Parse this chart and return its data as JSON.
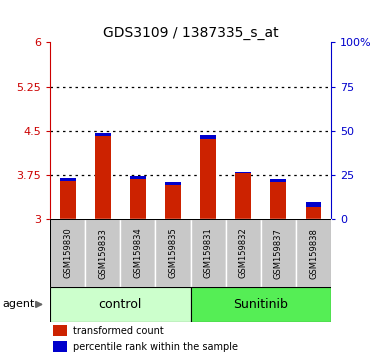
{
  "title": "GDS3109 / 1387335_s_at",
  "samples": [
    "GSM159830",
    "GSM159833",
    "GSM159834",
    "GSM159835",
    "GSM159831",
    "GSM159832",
    "GSM159837",
    "GSM159838"
  ],
  "red_values": [
    3.65,
    4.42,
    3.68,
    3.58,
    4.37,
    3.79,
    3.63,
    3.22
  ],
  "blue_tops": [
    3.7,
    4.47,
    3.73,
    3.64,
    4.43,
    3.81,
    3.69,
    3.29
  ],
  "y_min": 3.0,
  "y_max": 6.0,
  "y_ticks": [
    3.0,
    3.75,
    4.5,
    5.25,
    6.0
  ],
  "y_tick_labels": [
    "3",
    "3.75",
    "4.5",
    "5.25",
    "6"
  ],
  "right_y_ticks": [
    0,
    25,
    50,
    75,
    100
  ],
  "right_y_tick_labels": [
    "0",
    "25",
    "50",
    "75",
    "100%"
  ],
  "bar_red_color": "#cc2200",
  "bar_blue_color": "#0000cc",
  "control_label": "control",
  "sunitinib_label": "Sunitinib",
  "agent_label": "agent",
  "legend_red": "transformed count",
  "legend_blue": "percentile rank within the sample",
  "bar_width": 0.45,
  "tick_color_left": "#cc0000",
  "tick_color_right": "#0000cc",
  "control_bg": "#ccffcc",
  "sunitinib_bg": "#55ee55",
  "sample_bg": "#c8c8c8",
  "plot_bg": "#ffffff",
  "spine_color": "#000000"
}
